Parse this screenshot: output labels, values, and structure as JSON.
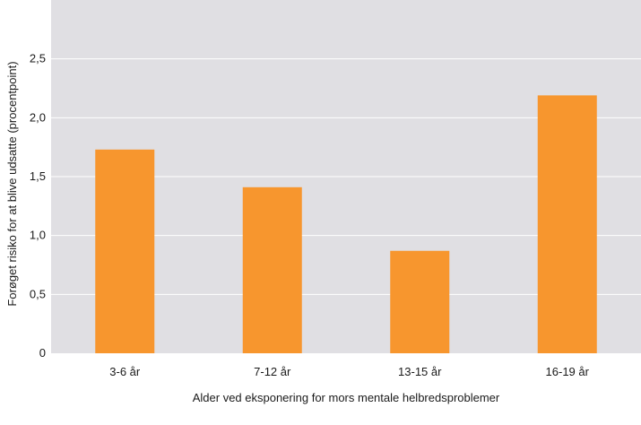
{
  "chart_data": {
    "type": "bar",
    "categories": [
      "3-6 år",
      "7-12 år",
      "13-15 år",
      "16-19 år"
    ],
    "values": [
      1.73,
      1.41,
      0.87,
      2.19
    ],
    "title": "",
    "xlabel": "Alder ved eksponering for mors mentale helbredsproblemer",
    "ylabel": "Forøget risiko for at blive udsatte (procentpoint)",
    "ylim": [
      0,
      3.0
    ],
    "yticks": [
      0,
      0.5,
      1.0,
      1.5,
      2.0,
      2.5
    ],
    "ytick_labels": [
      "0",
      "0,5",
      "1,0",
      "1,5",
      "2,0",
      "2,5"
    ],
    "grid": true,
    "legend": "none",
    "colors": {
      "bar": "#f7962e",
      "plot_background": "#e0dfe3",
      "gridline": "#ffffff"
    }
  }
}
